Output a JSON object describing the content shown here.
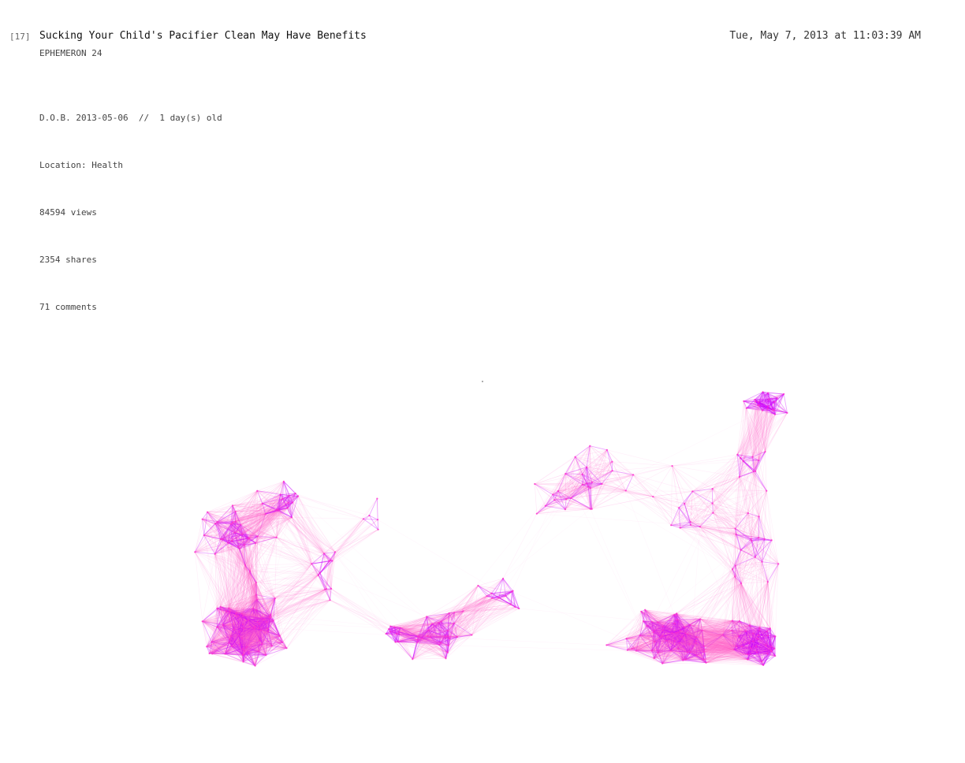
{
  "header": {
    "index": "[17]",
    "title": "Sucking Your Child's Pacifier Clean May Have Benefits",
    "timestamp": "Tue, May 7, 2013 at 11:03:39 AM",
    "series": "EPHEMERON 24"
  },
  "details": {
    "dob_line": "D.O.B. 2013-05-06  //  1 day(s) old",
    "location_line": "Location: Health",
    "views_line": "84594 views",
    "shares_line": "2354 shares",
    "comments_line": "71 comments"
  },
  "visualization": {
    "type": "network",
    "node_color": "#ff33cc",
    "edge_color": "#ff66cc",
    "dense_edge_color": "#cc00ff"
  }
}
